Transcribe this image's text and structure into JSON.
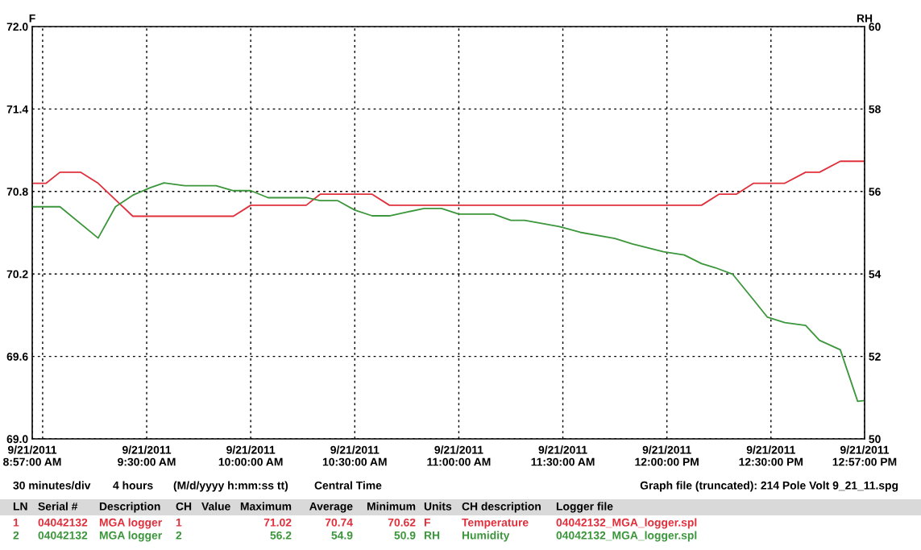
{
  "chart_data": {
    "type": "line",
    "ylabel": "F",
    "y2label": "RH",
    "xlim": [
      "2011-09-21T08:57",
      "2011-09-21T12:57"
    ],
    "xticks": [
      {
        "value": "2011-09-21T08:57",
        "label": "9/21/2011\n8:57:00 AM"
      },
      {
        "value": "2011-09-21T09:00",
        "label": null
      },
      {
        "value": "2011-09-21T09:30",
        "label": "9/21/2011\n9:30:00 AM"
      },
      {
        "value": "2011-09-21T10:00",
        "label": "9/21/2011\n10:00:00 AM"
      },
      {
        "value": "2011-09-21T10:30",
        "label": "9/21/2011\n10:30:00 AM"
      },
      {
        "value": "2011-09-21T11:00",
        "label": "9/21/2011\n11:00:00 AM"
      },
      {
        "value": "2011-09-21T11:30",
        "label": "9/21/2011\n11:30:00 AM"
      },
      {
        "value": "2011-09-21T12:00",
        "label": "9/21/2011\n12:00:00 PM"
      },
      {
        "value": "2011-09-21T12:30",
        "label": "9/21/2011\n12:30:00 PM"
      },
      {
        "value": "2011-09-21T12:57",
        "label": "9/21/2011\n12:57:00 PM"
      }
    ],
    "ylim": [
      69,
      72
    ],
    "yticks": [
      {
        "value": 69,
        "label": "69.0"
      },
      69.6,
      70.2,
      70.8,
      71.4,
      {
        "value": 72,
        "label": "72.0"
      }
    ],
    "y2lim": [
      50,
      60
    ],
    "y2ticks": [
      50,
      52,
      54,
      56,
      58,
      60
    ],
    "grid": true,
    "line_style": "solid",
    "marker": "none",
    "series": [
      {
        "color": "#e0303c",
        "x": [
          "2011-09-21T08:57",
          "2011-09-21T09:01",
          "2011-09-21T09:05",
          "2011-09-21T09:11",
          "2011-09-21T09:16",
          "2011-09-21T09:26",
          "2011-09-21T09:55",
          "2011-09-21T10:00",
          "2011-09-21T10:16",
          "2011-09-21T10:20",
          "2011-09-21T10:35",
          "2011-09-21T10:40",
          "2011-09-21T12:10",
          "2011-09-21T12:15",
          "2011-09-21T12:20",
          "2011-09-21T12:25",
          "2011-09-21T12:34",
          "2011-09-21T12:40",
          "2011-09-21T12:44",
          "2011-09-21T12:50",
          "2011-09-21T12:57"
        ],
        "values": [
          70.86,
          70.86,
          70.94,
          70.94,
          70.86,
          70.62,
          70.62,
          70.7,
          70.7,
          70.78,
          70.78,
          70.7,
          70.7,
          70.78,
          70.78,
          70.86,
          70.86,
          70.94,
          70.94,
          71.02,
          71.02
        ]
      },
      {
        "color": "#3c963c",
        "axis": "y2",
        "x": [
          "2011-09-21T08:57",
          "2011-09-21T09:05",
          "2011-09-21T09:16",
          "2011-09-21T09:21",
          "2011-09-21T09:26",
          "2011-09-21T09:31",
          "2011-09-21T09:35",
          "2011-09-21T09:41",
          "2011-09-21T09:50",
          "2011-09-21T09:55",
          "2011-09-21T10:00",
          "2011-09-21T10:05",
          "2011-09-21T10:16",
          "2011-09-21T10:20",
          "2011-09-21T10:25",
          "2011-09-21T10:30",
          "2011-09-21T10:35",
          "2011-09-21T10:40",
          "2011-09-21T10:45",
          "2011-09-21T10:50",
          "2011-09-21T10:55",
          "2011-09-21T11:00",
          "2011-09-21T11:10",
          "2011-09-21T11:15",
          "2011-09-21T11:19",
          "2011-09-21T11:29",
          "2011-09-21T11:35",
          "2011-09-21T11:45",
          "2011-09-21T11:50",
          "2011-09-21T11:59",
          "2011-09-21T12:05",
          "2011-09-21T12:10",
          "2011-09-21T12:14",
          "2011-09-21T12:19",
          "2011-09-21T12:25",
          "2011-09-21T12:29",
          "2011-09-21T12:34",
          "2011-09-21T12:40",
          "2011-09-21T12:44",
          "2011-09-21T12:50",
          "2011-09-21T12:55",
          "2011-09-21T12:57"
        ],
        "values": [
          55.63,
          55.63,
          54.87,
          55.63,
          55.91,
          56.09,
          56.21,
          56.14,
          56.14,
          56.02,
          56.02,
          55.85,
          55.85,
          55.78,
          55.78,
          55.55,
          55.41,
          55.41,
          55.5,
          55.59,
          55.59,
          55.45,
          55.45,
          55.3,
          55.3,
          55.15,
          55.01,
          54.86,
          54.73,
          54.54,
          54.46,
          54.25,
          54.15,
          53.99,
          53.37,
          52.95,
          52.82,
          52.75,
          52.39,
          52.16,
          50.91,
          50.93
        ]
      }
    ],
    "annotations": [
      "30 minutes/div",
      "4 hours",
      "(M/d/yyyy h:mm:ss tt)",
      "Central Time",
      "Graph file (truncated): 214 Pole Volt 9_21_11.spg",
      "LN",
      "Serial #",
      "Description",
      "CH",
      "Value",
      "Maximum",
      "Average",
      "Minimum",
      "Units",
      "CH description",
      "Logger file",
      "1",
      "04042132",
      "MGA logger",
      "1",
      "71.02",
      "70.74",
      "70.62",
      "F",
      "Temperature",
      "04042132_MGA_logger.spl",
      "2",
      "04042132",
      "MGA logger",
      "2",
      "56.2",
      "54.9",
      "50.9",
      "RH",
      "Humidity",
      "04042132_MGA_logger.spl"
    ]
  }
}
